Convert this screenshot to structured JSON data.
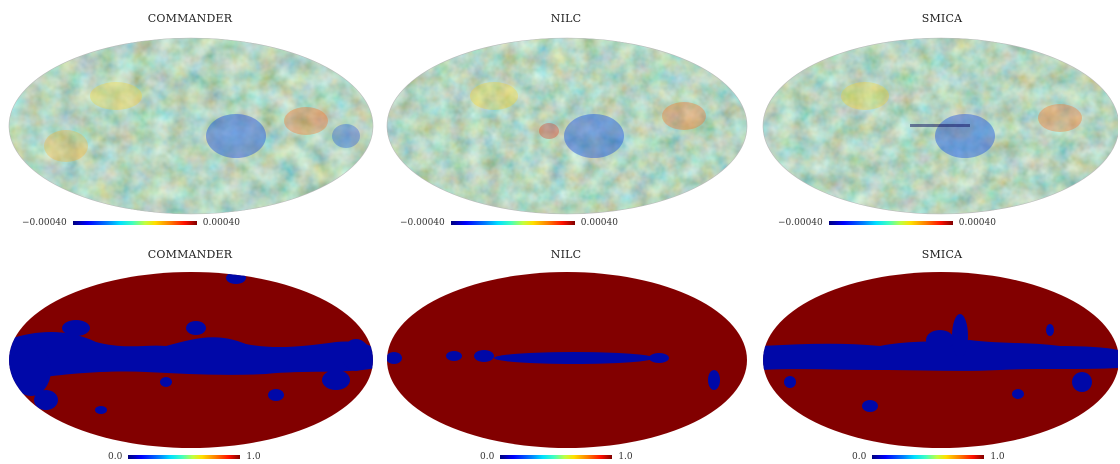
{
  "top_row": {
    "panels": [
      {
        "title": "COMMANDER",
        "cbar_min": "−0.00040",
        "cbar_max": "0.00040"
      },
      {
        "title": "NILC",
        "cbar_min": "−0.00040",
        "cbar_max": "0.00040"
      },
      {
        "title": "SMICA",
        "cbar_min": "−0.00040",
        "cbar_max": "0.00040"
      }
    ]
  },
  "bottom_row": {
    "panels": [
      {
        "title": "COMMANDER",
        "cbar_min": "0.0",
        "cbar_max": "1.0"
      },
      {
        "title": "NILC",
        "cbar_min": "0.0",
        "cbar_max": "1.0"
      },
      {
        "title": "SMICA",
        "cbar_min": "0.0",
        "cbar_max": "1.0"
      }
    ]
  },
  "colors": {
    "mask_valid": "#820000",
    "mask_masked": "#0008a8",
    "cmb_base": "#6fd6a8"
  }
}
